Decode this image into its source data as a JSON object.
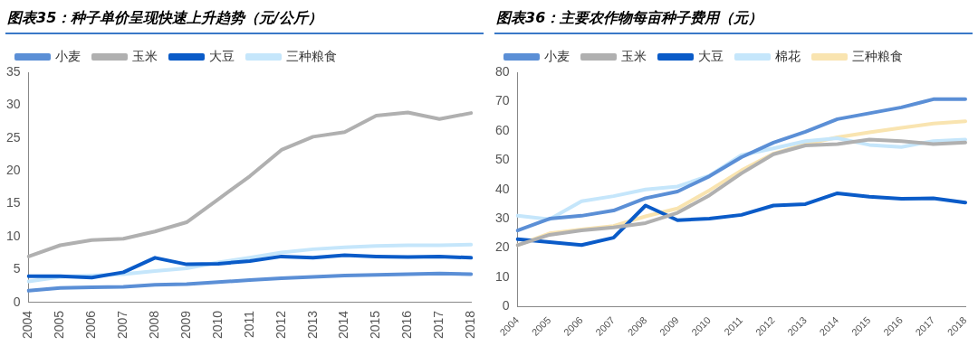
{
  "chart_data": [
    {
      "type": "line",
      "title": "图表35：种子单价呈现快速上升趋势（元/公斤）",
      "categories": [
        "2004",
        "2005",
        "2006",
        "2007",
        "2008",
        "2009",
        "2010",
        "2011",
        "2012",
        "2013",
        "2014",
        "2015",
        "2016",
        "2017",
        "2018"
      ],
      "ylim": [
        0,
        35
      ],
      "yticks": [
        0,
        5,
        10,
        15,
        20,
        25,
        30,
        35
      ],
      "grid": false,
      "legend": "top",
      "series": [
        {
          "name": "小麦",
          "color": "#5b8fd6",
          "values": [
            1.8,
            2.2,
            2.3,
            2.4,
            2.7,
            2.8,
            3.1,
            3.4,
            3.7,
            3.9,
            4.1,
            4.2,
            4.3,
            4.4,
            4.3
          ]
        },
        {
          "name": "玉米",
          "color": "#b0b0b0",
          "values": [
            7.0,
            8.7,
            9.5,
            9.7,
            10.8,
            12.2,
            15.7,
            19.2,
            23.2,
            25.2,
            25.9,
            28.4,
            28.9,
            27.9,
            28.8
          ]
        },
        {
          "name": "大豆",
          "color": "#0a5bc8",
          "values": [
            4.0,
            4.0,
            3.8,
            4.6,
            6.8,
            5.8,
            5.9,
            6.3,
            7.0,
            6.8,
            7.2,
            7.0,
            6.9,
            7.0,
            6.8
          ]
        },
        {
          "name": "三种粮食",
          "color": "#c5e6fb",
          "values": [
            3.2,
            3.9,
            4.1,
            4.3,
            4.8,
            5.2,
            6.1,
            6.8,
            7.6,
            8.1,
            8.4,
            8.6,
            8.7,
            8.7,
            8.8
          ]
        }
      ]
    },
    {
      "type": "line",
      "title": "图表36：主要农作物每亩种子费用（元）",
      "categories": [
        "2004",
        "2005",
        "2006",
        "2007",
        "2008",
        "2009",
        "2010",
        "2011",
        "2012",
        "2013",
        "2014",
        "2015",
        "2016",
        "2017",
        "2018"
      ],
      "ylim": [
        0,
        80
      ],
      "yticks": [
        0,
        10,
        20,
        30,
        40,
        50,
        60,
        70,
        80
      ],
      "grid": false,
      "legend": "top",
      "series": [
        {
          "name": "小麦",
          "color": "#5b8fd6",
          "values": [
            26,
            30,
            31,
            32.8,
            37,
            39.3,
            44.5,
            51,
            56,
            59.7,
            64,
            66,
            68,
            70.8,
            70.8
          ]
        },
        {
          "name": "玉米",
          "color": "#b0b0b0",
          "values": [
            21,
            24.5,
            26,
            27,
            28.5,
            32,
            38,
            45.5,
            52,
            55,
            55.5,
            57,
            56.5,
            55.5,
            56
          ]
        },
        {
          "name": "大豆",
          "color": "#0a5bc8",
          "values": [
            23,
            22,
            21,
            23.5,
            34.5,
            29.5,
            30,
            31.3,
            34.5,
            35,
            38.7,
            37.5,
            36.8,
            37,
            35.5
          ]
        },
        {
          "name": "棉花",
          "color": "#c5e6fb",
          "values": [
            31,
            29.8,
            36,
            37.7,
            40,
            41,
            44.7,
            51.7,
            54,
            56.5,
            57.5,
            55.2,
            54.5,
            56.5,
            57
          ]
        },
        {
          "name": "三种粮食",
          "color": "#f9e4b0",
          "values": [
            21,
            25,
            26.3,
            27.5,
            30.8,
            33.5,
            39.7,
            46.5,
            52.2,
            55.5,
            57.8,
            59.5,
            61,
            62.5,
            63.3
          ]
        }
      ]
    }
  ]
}
